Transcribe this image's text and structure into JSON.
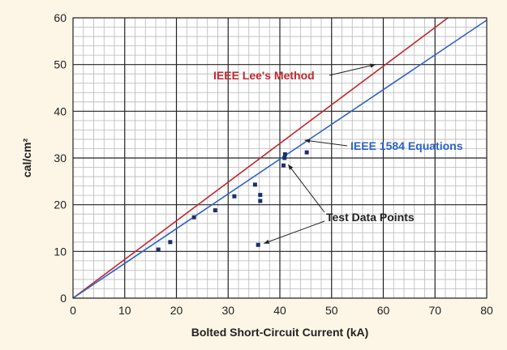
{
  "chart_data": {
    "type": "line",
    "xlabel": "Bolted Short-Circuit Current (kA)",
    "ylabel": "cal/cm²",
    "xlim": [
      0,
      80
    ],
    "ylim": [
      0,
      60
    ],
    "x_ticks": [
      "0",
      "10",
      "20",
      "30",
      "40",
      "50",
      "60",
      "70",
      "80"
    ],
    "y_ticks": [
      "0",
      "10",
      "20",
      "30",
      "40",
      "50",
      "60"
    ],
    "grid": true,
    "minor_grid": true,
    "series": [
      {
        "name": "IEEE Lee's Method",
        "color": "#c0282f",
        "type": "line",
        "x": [
          0,
          72.5
        ],
        "y": [
          0,
          60
        ]
      },
      {
        "name": "IEEE 1584 Equations",
        "color": "#2d63c8",
        "type": "line",
        "x": [
          0,
          80
        ],
        "y": [
          0,
          59.5
        ]
      },
      {
        "name": "Test Data Points",
        "color": "#1c2f6e",
        "type": "scatter",
        "x": [
          16.5,
          18.8,
          23.4,
          27.5,
          31.2,
          35.2,
          35.8,
          36.2,
          36.2,
          40.7,
          40.9,
          41.0,
          45.2
        ],
        "y": [
          10.4,
          12.0,
          17.3,
          18.8,
          21.8,
          24.3,
          11.4,
          22.1,
          20.8,
          28.4,
          30.0,
          30.8,
          31.2
        ]
      }
    ],
    "annotations": [
      "IEEE Lee's Method",
      "IEEE 1584 Equations",
      "Test Data Points"
    ]
  }
}
